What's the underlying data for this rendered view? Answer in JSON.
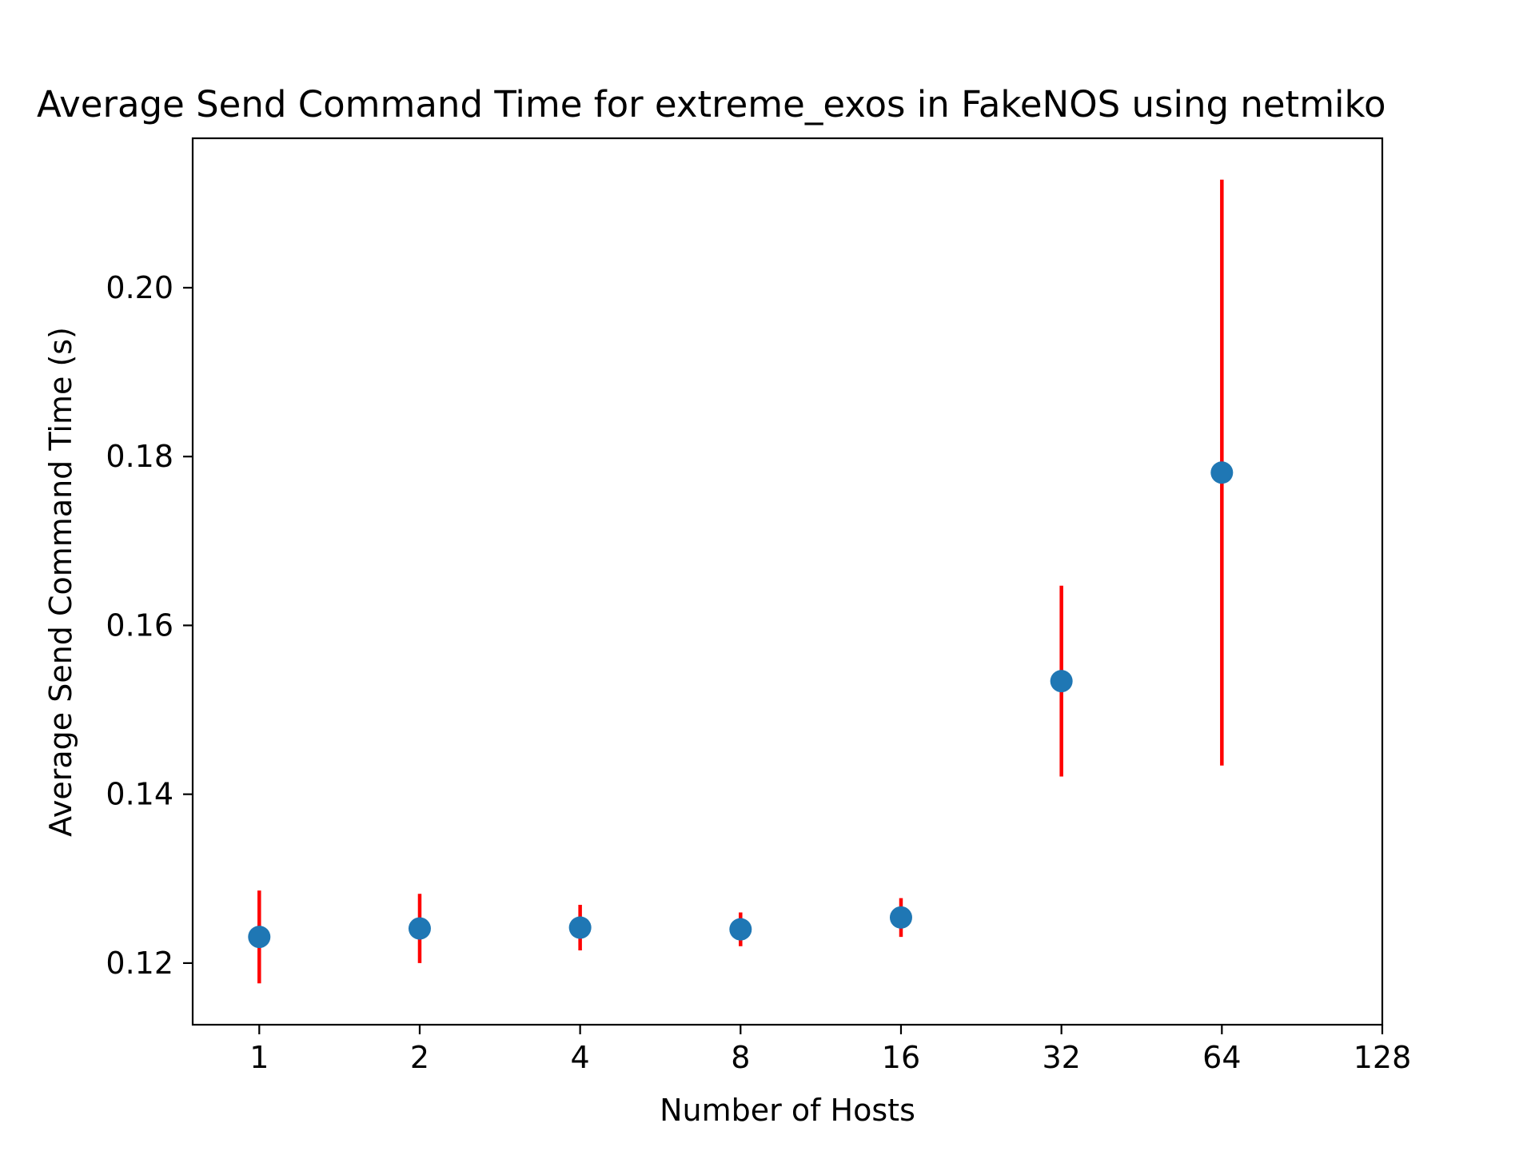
{
  "chart_data": {
    "type": "scatter",
    "title": "Average Send Command Time for extreme_exos in FakeNOS using netmiko",
    "xlabel": "Number of Hosts",
    "ylabel": "Average Send Command Time (s)",
    "xscale": "log2",
    "xlim": [
      0.75,
      128
    ],
    "ylim": [
      0.1127,
      0.2177
    ],
    "xticks": [
      1,
      2,
      4,
      8,
      16,
      32,
      64,
      128
    ],
    "xtick_labels": [
      "1",
      "2",
      "4",
      "8",
      "16",
      "32",
      "64",
      "128"
    ],
    "yticks": [
      0.12,
      0.14,
      0.16,
      0.18,
      0.2
    ],
    "ytick_labels": [
      "0.12",
      "0.14",
      "0.16",
      "0.18",
      "0.20"
    ],
    "grid": false,
    "legend": false,
    "series": [
      {
        "x": [
          1,
          2,
          4,
          8,
          16,
          32,
          64
        ],
        "y": [
          0.1231,
          0.1241,
          0.1242,
          0.124,
          0.1254,
          0.1534,
          0.1781
        ],
        "yerr": [
          0.0055,
          0.0041,
          0.0027,
          0.002,
          0.0023,
          0.0113,
          0.0347
        ],
        "marker_color": "#1f77b4",
        "errorbar_color": "#ff0000"
      }
    ]
  }
}
